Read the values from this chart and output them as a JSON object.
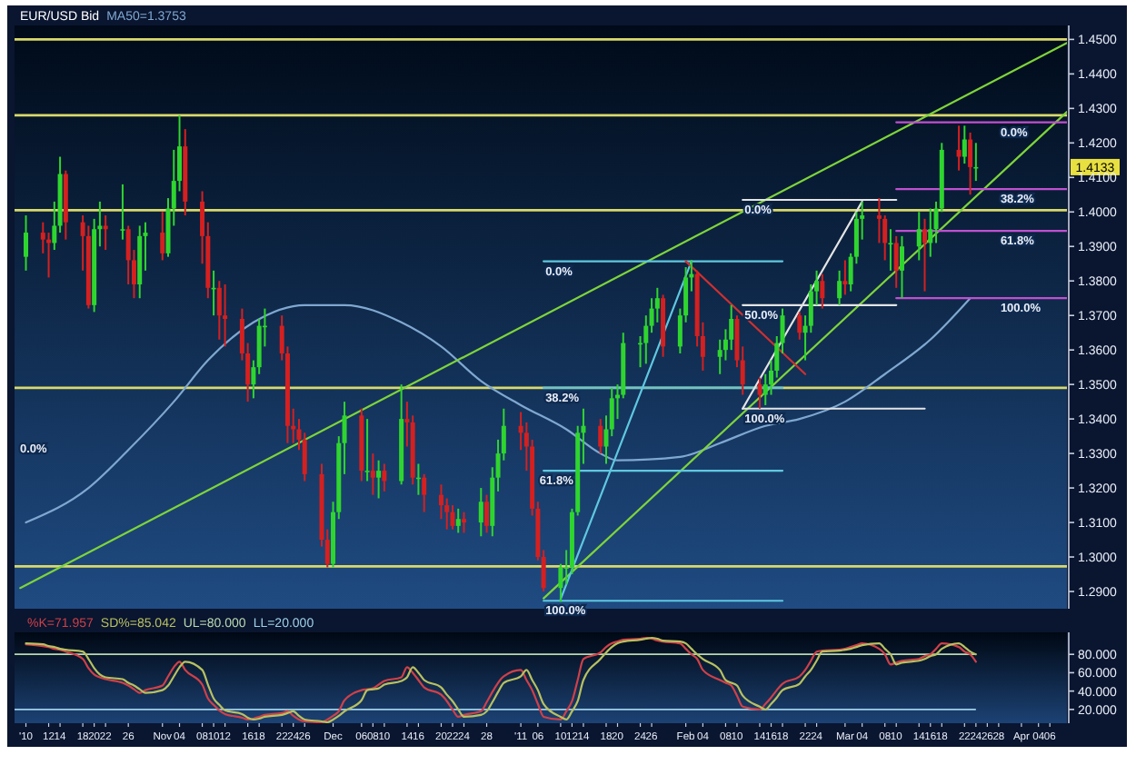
{
  "chart_data": [
    {
      "type": "candlestick",
      "title": "EUR/USD Bid",
      "legend": "top left",
      "tick_labels": "y",
      "xlim": [
        "2010-10-06",
        "2011-04-09"
      ],
      "ylim": [
        1.285,
        1.453
      ],
      "yticks": [
        {
          "value": 1.29,
          "label": "1.2900"
        },
        {
          "value": 1.3,
          "label": "1.3000"
        },
        {
          "value": 1.31,
          "label": "1.3100"
        },
        {
          "value": 1.32,
          "label": "1.3200"
        },
        {
          "value": 1.33,
          "label": "1.3300"
        },
        {
          "value": 1.34,
          "label": "1.3400"
        },
        {
          "value": 1.35,
          "label": "1.3500"
        },
        {
          "value": 1.36,
          "label": "1.3600"
        },
        {
          "value": 1.37,
          "label": "1.3700"
        },
        {
          "value": 1.38,
          "label": "1.3800"
        },
        {
          "value": 1.39,
          "label": "1.3900"
        },
        {
          "value": 1.4,
          "label": "1.4000"
        },
        {
          "value": 1.41,
          "label": "1.4100"
        },
        {
          "value": 1.42,
          "label": "1.4200"
        },
        {
          "value": 1.43,
          "label": "1.4300"
        },
        {
          "value": 1.44,
          "label": "1.4400"
        },
        {
          "value": 1.45,
          "label": "1.4500"
        }
      ],
      "ref_lines": [
        {
          "axis": "y",
          "value": 1.45,
          "color": "#d9d96b"
        },
        {
          "axis": "y",
          "value": 1.428,
          "color": "#d9d96b"
        },
        {
          "axis": "y",
          "value": 1.4005,
          "color": "#d9d96b"
        },
        {
          "axis": "y",
          "value": 1.349,
          "color": "#d9d96b"
        },
        {
          "axis": "y",
          "value": 1.2973,
          "color": "#d9d96b"
        }
      ],
      "series": [
        {
          "type": "line",
          "name": "MA50=1.3753",
          "color": "#7fa8d0",
          "x": [
            "2010-10-08",
            "2010-10-19",
            "2010-10-26",
            "2010-11-03",
            "2010-11-09",
            "2010-11-17",
            "2010-11-26",
            "2010-12-03",
            "2010-12-13",
            "2010-12-20",
            "2010-12-27",
            "2011-01-03",
            "2011-01-11",
            "2011-01-17",
            "2011-01-20",
            "2011-01-31",
            "2011-02-07",
            "2011-02-15",
            "2011-02-21",
            "2011-03-01",
            "2011-03-08",
            "2011-03-16",
            "2011-03-23"
          ],
          "values": [
            1.31,
            1.32,
            1.331,
            1.345,
            1.357,
            1.368,
            1.373,
            1.373,
            1.368,
            1.361,
            1.351,
            1.344,
            1.337,
            1.33,
            1.328,
            1.329,
            1.333,
            1.338,
            1.34,
            1.345,
            1.353,
            1.363,
            1.375
          ]
        },
        {
          "type": "line",
          "color": "#7ed43a",
          "x": [
            "2010-10-07",
            "2011-04-09"
          ],
          "values": [
            1.291,
            1.449
          ]
        },
        {
          "type": "line",
          "color": "#7ed43a",
          "x": [
            "2011-01-07",
            "2011-04-09"
          ],
          "values": [
            1.288,
            1.429
          ]
        },
        {
          "type": "line",
          "color": "#5fc8e0",
          "x": [
            "2011-01-07",
            "2011-02-18"
          ],
          "values": [
            1.3857,
            1.3857
          ]
        },
        {
          "type": "line",
          "color": "#5fc8e0",
          "x": [
            "2011-01-07",
            "2011-02-18"
          ],
          "values": [
            1.349,
            1.349
          ]
        },
        {
          "type": "line",
          "color": "#5fc8e0",
          "x": [
            "2011-01-07",
            "2011-02-18"
          ],
          "values": [
            1.325,
            1.325
          ]
        },
        {
          "type": "line",
          "color": "#5fc8e0",
          "x": [
            "2011-01-07",
            "2011-02-18"
          ],
          "values": [
            1.2873,
            1.2873
          ]
        },
        {
          "type": "line",
          "color": "#5fc8e0",
          "x": [
            "2011-01-10",
            "2011-02-02"
          ],
          "values": [
            1.2878,
            1.3857
          ]
        },
        {
          "type": "line",
          "color": "#e4e4e4",
          "x": [
            "2011-02-11",
            "2011-03-10"
          ],
          "values": [
            1.4035,
            1.4035
          ]
        },
        {
          "type": "line",
          "color": "#e4e4e4",
          "x": [
            "2011-02-11",
            "2011-03-10"
          ],
          "values": [
            1.373,
            1.373
          ]
        },
        {
          "type": "line",
          "color": "#e4e4e4",
          "x": [
            "2011-02-11",
            "2011-03-15"
          ],
          "values": [
            1.343,
            1.343
          ]
        },
        {
          "type": "line",
          "color": "#e4e4e4",
          "x": [
            "2011-02-11",
            "2011-03-04"
          ],
          "values": [
            1.343,
            1.403
          ]
        },
        {
          "type": "line",
          "color": "#c050d0",
          "x": [
            "2011-03-10",
            "2011-04-09"
          ],
          "values": [
            1.426,
            1.426
          ]
        },
        {
          "type": "line",
          "color": "#c050d0",
          "x": [
            "2011-03-10",
            "2011-04-09"
          ],
          "values": [
            1.4066,
            1.4066
          ]
        },
        {
          "type": "line",
          "color": "#c050d0",
          "x": [
            "2011-03-10",
            "2011-04-09"
          ],
          "values": [
            1.3945,
            1.3945
          ]
        },
        {
          "type": "line",
          "color": "#c050d0",
          "x": [
            "2011-03-10",
            "2011-04-09"
          ],
          "values": [
            1.375,
            1.375
          ]
        },
        {
          "type": "line",
          "color": "#d03030",
          "x": [
            "2011-02-01",
            "2011-02-22"
          ],
          "values": [
            1.3857,
            1.353
          ]
        },
        {
          "colors": [
            "#2fd52f",
            "#d42020",
            "#d42020",
            "#2fd52f",
            "#2fd52f",
            "#d42020",
            "#d42020",
            "#d42020",
            "#2fd52f",
            "#2fd52f",
            "#d42020",
            "#2fd52f",
            "#d42020",
            "#d42020",
            "#2fd52f",
            "#2fd52f",
            "#d42020",
            "#2fd52f",
            "#2fd52f",
            "#2fd52f",
            "#d42020",
            "#d42020",
            "#d42020",
            "#2fd52f",
            "#d42020",
            "#d42020",
            "#d42020",
            "#d42020",
            "#2fd52f",
            "#2fd52f",
            "#2fd52f",
            "#d42020",
            "#d42020",
            "#d42020",
            "#d42020",
            "#d42020",
            "#d42020",
            "#d42020",
            "#2fd52f",
            "#2fd52f",
            "#2fd52f",
            "#d42020",
            "#2fd52f",
            "#d42020",
            "#2fd52f",
            "#d42020",
            "#2fd52f",
            "#d42020",
            "#d42020",
            "#2fd52f",
            "#d42020",
            "#d42020",
            "#d42020",
            "#d42020",
            "#2fd52f",
            "#d42020",
            "#2fd52f",
            "#d42020",
            "#2fd52f",
            "#2fd52f",
            "#2fd52f",
            "#d42020",
            "#d42020",
            "#d42020",
            "#d42020",
            "#d42020",
            "#2fd52f",
            "#2fd52f",
            "#2fd52f",
            "#2fd52f",
            "#2fd52f",
            "#d42020",
            "#2fd52f",
            "#2fd52f",
            "#2fd52f",
            "#2fd52f",
            "#2fd52f",
            "#2fd52f",
            "#2fd52f",
            "#2fd52f",
            "#d42020",
            "#2fd52f",
            "#2fd52f",
            "#2fd52f",
            "#d42020",
            "#d42020",
            "#2fd52f",
            "#2fd52f",
            "#2fd52f",
            "#d42020",
            "#d42020",
            "#d42020",
            "#2fd52f",
            "#2fd52f",
            "#2fd52f",
            "#2fd52f",
            "#d42020",
            "#2fd52f",
            "#2fd52f",
            "#2fd52f",
            "#d42020",
            "#2fd52f",
            "#d42020",
            "#2fd52f",
            "#2fd52f",
            "#2fd52f",
            "#d42020",
            "#d42020",
            "#2fd52f",
            "#d42020",
            "#2fd52f",
            "#2fd52f",
            "#d42020",
            "#2fd52f",
            "#2fd52f",
            "#2fd52f",
            "#d42020",
            "#2fd52f",
            "#d42020",
            "#2fd52f"
          ],
          "x": [
            "2010-10-08",
            "2010-10-11",
            "2010-10-12",
            "2010-10-13",
            "2010-10-14",
            "2010-10-15",
            "2010-10-18",
            "2010-10-19",
            "2010-10-20",
            "2010-10-21",
            "2010-10-22",
            "2010-10-25",
            "2010-10-26",
            "2010-10-27",
            "2010-10-28",
            "2010-10-29",
            "2010-11-01",
            "2010-11-02",
            "2010-11-03",
            "2010-11-04",
            "2010-11-05",
            "2010-11-08",
            "2010-11-09",
            "2010-11-10",
            "2010-11-11",
            "2010-11-12",
            "2010-11-15",
            "2010-11-16",
            "2010-11-17",
            "2010-11-18",
            "2010-11-19",
            "2010-11-22",
            "2010-11-23",
            "2010-11-24",
            "2010-11-25",
            "2010-11-26",
            "2010-11-29",
            "2010-11-30",
            "2010-12-01",
            "2010-12-02",
            "2010-12-03",
            "2010-12-06",
            "2010-12-07",
            "2010-12-08",
            "2010-12-09",
            "2010-12-10",
            "2010-12-13",
            "2010-12-14",
            "2010-12-15",
            "2010-12-16",
            "2010-12-17",
            "2010-12-20",
            "2010-12-21",
            "2010-12-22",
            "2010-12-23",
            "2010-12-24",
            "2010-12-27",
            "2010-12-28",
            "2010-12-29",
            "2010-12-30",
            "2010-12-31",
            "2011-01-03",
            "2011-01-04",
            "2011-01-05",
            "2011-01-06",
            "2011-01-07",
            "2011-01-10",
            "2011-01-11",
            "2011-01-12",
            "2011-01-13",
            "2011-01-14",
            "2011-01-17",
            "2011-01-18",
            "2011-01-19",
            "2011-01-20",
            "2011-01-21",
            "2011-01-24",
            "2011-01-25",
            "2011-01-26",
            "2011-01-27",
            "2011-01-28",
            "2011-01-31",
            "2011-02-01",
            "2011-02-02",
            "2011-02-03",
            "2011-02-04",
            "2011-02-07",
            "2011-02-08",
            "2011-02-09",
            "2011-02-10",
            "2011-02-11",
            "2011-02-14",
            "2011-02-15",
            "2011-02-16",
            "2011-02-17",
            "2011-02-18",
            "2011-02-21",
            "2011-02-22",
            "2011-02-23",
            "2011-02-24",
            "2011-02-25",
            "2011-02-28",
            "2011-03-01",
            "2011-03-02",
            "2011-03-03",
            "2011-03-04",
            "2011-03-07",
            "2011-03-08",
            "2011-03-09",
            "2011-03-10",
            "2011-03-11",
            "2011-03-14",
            "2011-03-15",
            "2011-03-16",
            "2011-03-17",
            "2011-03-18",
            "2011-03-21",
            "2011-03-22",
            "2011-03-23",
            "2011-03-24"
          ],
          "ohlc": [
            [
              1.387,
              1.399,
              1.383,
              1.394
            ],
            [
              1.394,
              1.397,
              1.388,
              1.392
            ],
            [
              1.392,
              1.394,
              1.381,
              1.391
            ],
            [
              1.391,
              1.403,
              1.389,
              1.396
            ],
            [
              1.396,
              1.416,
              1.394,
              1.411
            ],
            [
              1.411,
              1.412,
              1.392,
              1.397
            ],
            [
              1.397,
              1.399,
              1.383,
              1.393
            ],
            [
              1.393,
              1.396,
              1.372,
              1.373
            ],
            [
              1.373,
              1.398,
              1.371,
              1.395
            ],
            [
              1.395,
              1.403,
              1.39,
              1.396
            ],
            [
              1.396,
              1.399,
              1.389,
              1.395
            ],
            [
              1.395,
              1.408,
              1.392,
              1.395
            ],
            [
              1.395,
              1.396,
              1.379,
              1.386
            ],
            [
              1.386,
              1.389,
              1.375,
              1.379
            ],
            [
              1.379,
              1.396,
              1.375,
              1.393
            ],
            [
              1.393,
              1.397,
              1.383,
              1.394
            ],
            [
              1.394,
              1.4,
              1.386,
              1.388
            ],
            [
              1.388,
              1.404,
              1.387,
              1.401
            ],
            [
              1.401,
              1.418,
              1.396,
              1.409
            ],
            [
              1.409,
              1.428,
              1.406,
              1.419
            ],
            [
              1.419,
              1.424,
              1.399,
              1.403
            ],
            [
              1.403,
              1.406,
              1.385,
              1.393
            ],
            [
              1.393,
              1.397,
              1.375,
              1.378
            ],
            [
              1.378,
              1.383,
              1.37,
              1.378
            ],
            [
              1.378,
              1.38,
              1.363,
              1.37
            ],
            [
              1.37,
              1.379,
              1.361,
              1.369
            ],
            [
              1.369,
              1.372,
              1.357,
              1.359
            ],
            [
              1.359,
              1.362,
              1.345,
              1.35
            ],
            [
              1.35,
              1.357,
              1.346,
              1.355
            ],
            [
              1.355,
              1.369,
              1.353,
              1.367
            ],
            [
              1.367,
              1.372,
              1.361,
              1.367
            ],
            [
              1.367,
              1.37,
              1.357,
              1.359
            ],
            [
              1.359,
              1.361,
              1.333,
              1.338
            ],
            [
              1.338,
              1.343,
              1.333,
              1.337
            ],
            [
              1.337,
              1.34,
              1.331,
              1.334
            ],
            [
              1.334,
              1.336,
              1.322,
              1.324
            ],
            [
              1.324,
              1.327,
              1.303,
              1.305
            ],
            [
              1.305,
              1.308,
              1.297,
              1.298
            ],
            [
              1.298,
              1.316,
              1.297,
              1.313
            ],
            [
              1.313,
              1.335,
              1.311,
              1.333
            ],
            [
              1.333,
              1.345,
              1.324,
              1.341
            ],
            [
              1.341,
              1.343,
              1.322,
              1.325
            ],
            [
              1.325,
              1.34,
              1.322,
              1.325
            ],
            [
              1.325,
              1.33,
              1.318,
              1.323
            ],
            [
              1.323,
              1.328,
              1.317,
              1.325
            ],
            [
              1.325,
              1.327,
              1.319,
              1.322
            ],
            [
              1.322,
              1.35,
              1.321,
              1.34
            ],
            [
              1.34,
              1.345,
              1.332,
              1.339
            ],
            [
              1.339,
              1.341,
              1.321,
              1.323
            ],
            [
              1.323,
              1.327,
              1.318,
              1.323
            ],
            [
              1.323,
              1.324,
              1.313,
              1.318
            ],
            [
              1.318,
              1.321,
              1.311,
              1.315
            ],
            [
              1.315,
              1.317,
              1.308,
              1.313
            ],
            [
              1.313,
              1.315,
              1.308,
              1.309
            ],
            [
              1.309,
              1.314,
              1.307,
              1.311
            ],
            [
              1.311,
              1.313,
              1.307,
              1.31
            ],
            [
              1.31,
              1.32,
              1.306,
              1.316
            ],
            [
              1.316,
              1.318,
              1.307,
              1.309
            ],
            [
              1.309,
              1.326,
              1.306,
              1.323
            ],
            [
              1.323,
              1.334,
              1.319,
              1.33
            ],
            [
              1.33,
              1.343,
              1.328,
              1.338
            ],
            [
              1.338,
              1.342,
              1.331,
              1.336
            ],
            [
              1.336,
              1.339,
              1.325,
              1.332
            ],
            [
              1.332,
              1.334,
              1.312,
              1.314
            ],
            [
              1.314,
              1.316,
              1.299,
              1.3
            ],
            [
              1.3,
              1.302,
              1.29,
              1.291
            ],
            [
              1.291,
              1.298,
              1.287,
              1.297
            ],
            [
              1.297,
              1.302,
              1.292,
              1.297
            ],
            [
              1.297,
              1.314,
              1.295,
              1.313
            ],
            [
              1.313,
              1.338,
              1.312,
              1.336
            ],
            [
              1.336,
              1.343,
              1.327,
              1.338
            ],
            [
              1.338,
              1.34,
              1.33,
              1.332
            ],
            [
              1.332,
              1.341,
              1.327,
              1.337
            ],
            [
              1.337,
              1.349,
              1.335,
              1.346
            ],
            [
              1.346,
              1.35,
              1.34,
              1.347
            ],
            [
              1.347,
              1.365,
              1.346,
              1.362
            ],
            [
              1.362,
              1.364,
              1.355,
              1.362
            ],
            [
              1.362,
              1.37,
              1.356,
              1.367
            ],
            [
              1.367,
              1.375,
              1.365,
              1.372
            ],
            [
              1.372,
              1.378,
              1.368,
              1.375
            ],
            [
              1.375,
              1.376,
              1.358,
              1.361
            ],
            [
              1.361,
              1.372,
              1.359,
              1.37
            ],
            [
              1.37,
              1.384,
              1.368,
              1.381
            ],
            [
              1.381,
              1.386,
              1.377,
              1.382
            ],
            [
              1.382,
              1.383,
              1.361,
              1.364
            ],
            [
              1.364,
              1.368,
              1.354,
              1.358
            ],
            [
              1.358,
              1.363,
              1.353,
              1.36
            ],
            [
              1.36,
              1.366,
              1.357,
              1.363
            ],
            [
              1.363,
              1.373,
              1.36,
              1.369
            ],
            [
              1.369,
              1.37,
              1.355,
              1.357
            ],
            [
              1.357,
              1.361,
              1.347,
              1.35
            ],
            [
              1.35,
              1.352,
              1.343,
              1.347
            ],
            [
              1.347,
              1.353,
              1.344,
              1.35
            ],
            [
              1.35,
              1.357,
              1.347,
              1.354
            ],
            [
              1.354,
              1.364,
              1.352,
              1.362
            ],
            [
              1.362,
              1.372,
              1.359,
              1.37
            ],
            [
              1.37,
              1.371,
              1.363,
              1.365
            ],
            [
              1.365,
              1.37,
              1.357,
              1.367
            ],
            [
              1.367,
              1.379,
              1.365,
              1.377
            ],
            [
              1.377,
              1.383,
              1.373,
              1.38
            ],
            [
              1.38,
              1.382,
              1.372,
              1.375
            ],
            [
              1.375,
              1.383,
              1.373,
              1.38
            ],
            [
              1.38,
              1.386,
              1.376,
              1.379
            ],
            [
              1.379,
              1.388,
              1.377,
              1.387
            ],
            [
              1.387,
              1.4,
              1.385,
              1.398
            ],
            [
              1.398,
              1.403,
              1.392,
              1.399
            ],
            [
              1.399,
              1.404,
              1.391,
              1.398
            ],
            [
              1.398,
              1.399,
              1.386,
              1.391
            ],
            [
              1.391,
              1.395,
              1.383,
              1.391
            ],
            [
              1.391,
              1.393,
              1.378,
              1.383
            ],
            [
              1.383,
              1.393,
              1.375,
              1.39
            ],
            [
              1.39,
              1.4,
              1.386,
              1.395
            ],
            [
              1.395,
              1.398,
              1.377,
              1.391
            ],
            [
              1.391,
              1.401,
              1.387,
              1.395
            ],
            [
              1.395,
              1.403,
              1.391,
              1.401
            ],
            [
              1.401,
              1.42,
              1.4,
              1.418
            ],
            [
              1.418,
              1.425,
              1.412,
              1.416
            ],
            [
              1.416,
              1.425,
              1.414,
              1.421
            ],
            [
              1.421,
              1.423,
              1.405,
              1.413
            ],
            [
              1.413,
              1.42,
              1.409,
              1.413
            ]
          ]
        }
      ],
      "annotations": [
        "0.0%",
        {
          "text": "0.0%",
          "x": "2011-01-07",
          "y": 1.3857
        },
        {
          "text": "38.2%",
          "x": "2011-01-07",
          "y": 1.349
        },
        {
          "text": "61.8%",
          "x": "2011-01-06",
          "y": 1.325
        },
        {
          "text": "100.0%",
          "x": "2011-01-07",
          "y": 1.2873
        },
        {
          "text": "0.0%",
          "x": "2011-02-11",
          "y": 1.4035
        },
        {
          "text": "50.0%",
          "x": "2011-02-11",
          "y": 1.373
        },
        {
          "text": "100.0%",
          "x": "2011-02-11",
          "y": 1.343
        },
        {
          "text": "0.0%",
          "x": "2011-03-28",
          "y": 1.426
        },
        {
          "text": "38.2%",
          "x": "2011-03-28",
          "y": 1.4066
        },
        {
          "text": "61.8%",
          "x": "2011-03-28",
          "y": 1.3945
        },
        {
          "text": "100.0%",
          "x": "2011-03-28",
          "y": 1.375
        },
        "1.4133"
      ]
    },
    {
      "type": "line",
      "legend": "top left",
      "xlim": [
        "2010-10-06",
        "2011-04-09"
      ],
      "ylim": [
        5,
        100
      ],
      "x": [
        "2010-10-08",
        "2010-10-11",
        "2010-10-12",
        "2010-10-13",
        "2010-10-14",
        "2010-10-15",
        "2010-10-18",
        "2010-10-19",
        "2010-10-20",
        "2010-10-21",
        "2010-10-22",
        "2010-10-25",
        "2010-10-26",
        "2010-10-27",
        "2010-10-28",
        "2010-10-29",
        "2010-11-01",
        "2010-11-02",
        "2010-11-03",
        "2010-11-04",
        "2010-11-05",
        "2010-11-08",
        "2010-11-09",
        "2010-11-10",
        "2010-11-11",
        "2010-11-12",
        "2010-11-15",
        "2010-11-16",
        "2010-11-17",
        "2010-11-18",
        "2010-11-19",
        "2010-11-22",
        "2010-11-23",
        "2010-11-24",
        "2010-11-25",
        "2010-11-26",
        "2010-11-29",
        "2010-11-30",
        "2010-12-01",
        "2010-12-02",
        "2010-12-03",
        "2010-12-06",
        "2010-12-07",
        "2010-12-08",
        "2010-12-09",
        "2010-12-10",
        "2010-12-13",
        "2010-12-14",
        "2010-12-15",
        "2010-12-16",
        "2010-12-17",
        "2010-12-20",
        "2010-12-21",
        "2010-12-22",
        "2010-12-23",
        "2010-12-24",
        "2010-12-27",
        "2010-12-28",
        "2010-12-29",
        "2010-12-30",
        "2010-12-31",
        "2011-01-03",
        "2011-01-04",
        "2011-01-05",
        "2011-01-06",
        "2011-01-07",
        "2011-01-10",
        "2011-01-11",
        "2011-01-12",
        "2011-01-13",
        "2011-01-14",
        "2011-01-17",
        "2011-01-18",
        "2011-01-19",
        "2011-01-20",
        "2011-01-21",
        "2011-01-24",
        "2011-01-25",
        "2011-01-26",
        "2011-01-27",
        "2011-01-28",
        "2011-01-31",
        "2011-02-01",
        "2011-02-02",
        "2011-02-03",
        "2011-02-04",
        "2011-02-07",
        "2011-02-08",
        "2011-02-09",
        "2011-02-10",
        "2011-02-11",
        "2011-02-14",
        "2011-02-15",
        "2011-02-16",
        "2011-02-17",
        "2011-02-18",
        "2011-02-21",
        "2011-02-22",
        "2011-02-23",
        "2011-02-24",
        "2011-02-25",
        "2011-02-28",
        "2011-03-01",
        "2011-03-02",
        "2011-03-03",
        "2011-03-04",
        "2011-03-07",
        "2011-03-08",
        "2011-03-09",
        "2011-03-10",
        "2011-03-11",
        "2011-03-14",
        "2011-03-15",
        "2011-03-16",
        "2011-03-17",
        "2011-03-18",
        "2011-03-21",
        "2011-03-22",
        "2011-03-23",
        "2011-03-24"
      ],
      "xticks": [
        {
          "value": "2010-10-08",
          "label": "'10"
        },
        {
          "value": "2010-10-12",
          "label": "12"
        },
        {
          "value": "2010-10-14",
          "label": "14"
        },
        {
          "value": "2010-10-18",
          "label": "18"
        },
        {
          "value": "2010-10-20",
          "label": "20"
        },
        {
          "value": "2010-10-22",
          "label": "22"
        },
        {
          "value": "2010-10-26",
          "label": "26"
        },
        {
          "value": "2010-11-01",
          "label": "Nov"
        },
        {
          "value": "2010-11-04",
          "label": "04"
        },
        {
          "value": "2010-11-08",
          "label": "08"
        },
        {
          "value": "2010-11-10",
          "label": "10"
        },
        {
          "value": "2010-11-12",
          "label": "12"
        },
        {
          "value": "2010-11-16",
          "label": "16"
        },
        {
          "value": "2010-11-18",
          "label": "18"
        },
        {
          "value": "2010-11-22",
          "label": "22"
        },
        {
          "value": "2010-11-24",
          "label": "24"
        },
        {
          "value": "2010-11-26",
          "label": "26"
        },
        {
          "value": "2010-12-01",
          "label": "Dec"
        },
        {
          "value": "2010-12-06",
          "label": "06"
        },
        {
          "value": "2010-12-08",
          "label": "08"
        },
        {
          "value": "2010-12-10",
          "label": "10"
        },
        {
          "value": "2010-12-14",
          "label": "14"
        },
        {
          "value": "2010-12-16",
          "label": "16"
        },
        {
          "value": "2010-12-20",
          "label": "20"
        },
        {
          "value": "2010-12-22",
          "label": "22"
        },
        {
          "value": "2010-12-24",
          "label": "24"
        },
        {
          "value": "2010-12-28",
          "label": "28"
        },
        {
          "value": "2011-01-03",
          "label": "'11"
        },
        {
          "value": "2011-01-06",
          "label": "06"
        },
        {
          "value": "2011-01-10",
          "label": "10"
        },
        {
          "value": "2011-01-12",
          "label": "12"
        },
        {
          "value": "2011-01-14",
          "label": "14"
        },
        {
          "value": "2011-01-18",
          "label": "18"
        },
        {
          "value": "2011-01-20",
          "label": "20"
        },
        {
          "value": "2011-01-24",
          "label": "24"
        },
        {
          "value": "2011-01-26",
          "label": "26"
        },
        {
          "value": "2011-02-01",
          "label": "Feb"
        },
        {
          "value": "2011-02-04",
          "label": "04"
        },
        {
          "value": "2011-02-08",
          "label": "08"
        },
        {
          "value": "2011-02-10",
          "label": "10"
        },
        {
          "value": "2011-02-14",
          "label": "14"
        },
        {
          "value": "2011-02-16",
          "label": "16"
        },
        {
          "value": "2011-02-18",
          "label": "18"
        },
        {
          "value": "2011-02-22",
          "label": "22"
        },
        {
          "value": "2011-02-24",
          "label": "24"
        },
        {
          "value": "2011-03-01",
          "label": "Mar"
        },
        {
          "value": "2011-03-04",
          "label": "04"
        },
        {
          "value": "2011-03-08",
          "label": "08"
        },
        {
          "value": "2011-03-10",
          "label": "10"
        },
        {
          "value": "2011-03-14",
          "label": "14"
        },
        {
          "value": "2011-03-16",
          "label": "16"
        },
        {
          "value": "2011-03-18",
          "label": "18"
        },
        {
          "value": "2011-03-22",
          "label": "22"
        },
        {
          "value": "2011-03-24",
          "label": "24"
        },
        {
          "value": "2011-03-26",
          "label": "26"
        },
        {
          "value": "2011-03-28",
          "label": "28"
        },
        {
          "value": "2011-04-01",
          "label": "Apr"
        },
        {
          "value": "2011-04-04",
          "label": "04"
        },
        {
          "value": "2011-04-06",
          "label": "06"
        }
      ],
      "yticks": [
        {
          "value": 20,
          "label": "20.000"
        },
        {
          "value": 40,
          "label": "40.000"
        },
        {
          "value": 60,
          "label": "60.000"
        },
        {
          "value": 80,
          "label": "80.000"
        }
      ],
      "ref_lines": [
        {
          "axis": "y",
          "value": 80,
          "label": "UL=80.000",
          "color": "#b8d8b0"
        },
        {
          "axis": "y",
          "value": 20,
          "label": "LL=20.000",
          "color": "#9fd0e8"
        }
      ],
      "series": [
        {
          "name": "%K=71.957",
          "color": "#d04048",
          "values": [
            91,
            89,
            88,
            86,
            85,
            83,
            75,
            65,
            58,
            55,
            53,
            49,
            46,
            42,
            38,
            41,
            46,
            56,
            66,
            72,
            63,
            47,
            32,
            25,
            19,
            15,
            11,
            9,
            10,
            12,
            14,
            16,
            18,
            13,
            9,
            7,
            6,
            9,
            13,
            18,
            30,
            41,
            42,
            43,
            47,
            51,
            55,
            66,
            60,
            52,
            44,
            36,
            29,
            20,
            12,
            14,
            18,
            28,
            39,
            49,
            56,
            63,
            52,
            41,
            26,
            12,
            9,
            18,
            29,
            52,
            75,
            82,
            88,
            92,
            94,
            96,
            97,
            98,
            97,
            95,
            94,
            92,
            86,
            80,
            75,
            63,
            52,
            49,
            46,
            35,
            23,
            20,
            26,
            33,
            41,
            48,
            56,
            63,
            73,
            83,
            84,
            85,
            86,
            88,
            90,
            92,
            86,
            80,
            69,
            71,
            73,
            75,
            78,
            80,
            86,
            92,
            88,
            83,
            80,
            72
          ]
        },
        {
          "name": "SD%=85.042",
          "color": "#b8c060",
          "values": [
            92,
            91,
            89,
            88,
            86,
            85,
            83,
            75,
            65,
            58,
            55,
            53,
            49,
            46,
            42,
            38,
            41,
            46,
            56,
            66,
            72,
            63,
            47,
            32,
            25,
            19,
            15,
            11,
            9,
            10,
            12,
            14,
            16,
            18,
            13,
            9,
            7,
            6,
            9,
            13,
            18,
            30,
            41,
            42,
            43,
            47,
            51,
            55,
            66,
            60,
            52,
            44,
            36,
            29,
            20,
            12,
            14,
            18,
            28,
            39,
            49,
            56,
            63,
            52,
            41,
            26,
            12,
            9,
            18,
            29,
            52,
            75,
            82,
            88,
            92,
            94,
            96,
            97,
            98,
            97,
            95,
            94,
            92,
            86,
            80,
            75,
            63,
            52,
            49,
            46,
            35,
            23,
            20,
            26,
            33,
            41,
            48,
            56,
            63,
            73,
            83,
            84,
            85,
            86,
            88,
            90,
            92,
            86,
            80,
            69,
            71,
            73,
            75,
            78,
            80,
            86,
            92,
            88,
            83,
            80
          ]
        }
      ]
    }
  ]
}
